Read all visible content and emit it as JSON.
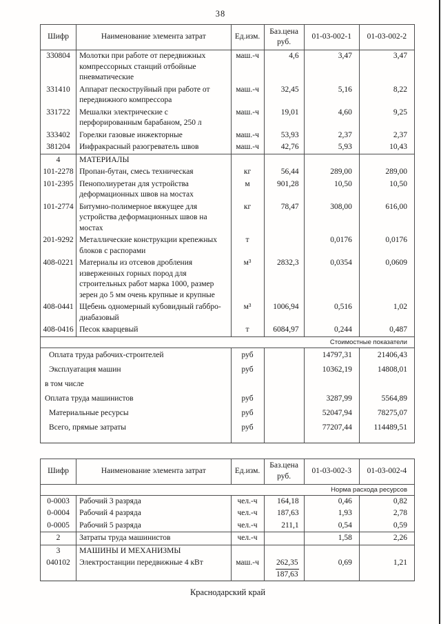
{
  "page": {
    "number": "38",
    "footer": "Краснодарский край"
  },
  "tables": [
    {
      "id": "cost-table-1",
      "headers": [
        "Шифр",
        "Наименование элемента затрат",
        "Ед.изм.",
        "Баз.цена руб.",
        "01-03-002-1",
        "01-03-002-2"
      ],
      "rows": [
        {
          "code": "330804",
          "name": "Молотки при работе от передвижных компрессорных станций отбойные пневматические",
          "unit": "маш.-ч",
          "base": "4,6",
          "v1": "3,47",
          "v2": "3,47"
        },
        {
          "code": "331410",
          "name": "Аппарат пескоструйный при работе от передвижного компрессора",
          "unit": "маш.-ч",
          "base": "32,45",
          "v1": "5,16",
          "v2": "8,22"
        },
        {
          "code": "331722",
          "name": "Мешалки электрические с перфорированным барабаном, 250 л",
          "unit": "маш.-ч",
          "base": "19,01",
          "v1": "4,60",
          "v2": "9,25"
        },
        {
          "code": "333402",
          "name": "Горелки газовые инжекторные",
          "unit": "маш.-ч",
          "base": "53,93",
          "v1": "2,37",
          "v2": "2,37"
        },
        {
          "code": "381204",
          "name": "Инфракрасный разогреватель швов",
          "unit": "маш.-ч",
          "base": "42,76",
          "v1": "5,93",
          "v2": "10,43"
        },
        {
          "section": true,
          "code": "4",
          "name": "МАТЕРИАЛЫ",
          "unit": "",
          "base": "",
          "v1": "",
          "v2": ""
        },
        {
          "code": "101-2278",
          "name": "Пропан-бутан, смесь техническая",
          "unit": "кг",
          "base": "56,44",
          "v1": "289,00",
          "v2": "289,00"
        },
        {
          "code": "101-2395",
          "name": "Пенополиуретан для устройства деформационных швов на мостах",
          "unit": "м",
          "base": "901,28",
          "v1": "10,50",
          "v2": "10,50"
        },
        {
          "code": "101-2774",
          "name": "Битумно-полимерное вяжущее для устройства деформационных швов на мостах",
          "unit": "кг",
          "base": "78,47",
          "v1": "308,00",
          "v2": "616,00"
        },
        {
          "code": "201-9292",
          "name": "Металлические конструкции крепежных блоков с распорами",
          "unit": "т",
          "base": "",
          "v1": "0,0176",
          "v2": "0,0176"
        },
        {
          "code": "408-0221",
          "name": "Материалы из отсевов дробления изверженных горных пород для строительных работ марка 1000, размер зерен до 5 мм очень крупные и крупные",
          "unit": "м³",
          "base": "2832,3",
          "v1": "0,0354",
          "v2": "0,0609"
        },
        {
          "code": "408-0441",
          "name": "Щебень одномерный кубовидный габбро-диабазовый",
          "unit": "м³",
          "base": "1006,94",
          "v1": "0,516",
          "v2": "1,02"
        },
        {
          "code": "408-0416",
          "name": "Песок кварцевый",
          "unit": "т",
          "base": "6084,97",
          "v1": "0,244",
          "v2": "0,487"
        }
      ],
      "band_label": "Стоимостные показатели",
      "band_after": "rows",
      "summary": [
        {
          "name": "Оплата труда рабочих-строителей",
          "unit": "руб",
          "v1": "14797,31",
          "v2": "21406,43",
          "bold": true
        },
        {
          "name": "Эксплуатация машин",
          "unit": "руб",
          "v1": "10362,19",
          "v2": "14808,01",
          "bold": true
        },
        {
          "name": "в том числе",
          "unit": "",
          "v1": "",
          "v2": "",
          "bold": false
        },
        {
          "name": "Оплата труда машинистов",
          "unit": "руб",
          "v1": "3287,99",
          "v2": "5564,89",
          "bold": false
        },
        {
          "name": "Материальные ресурсы",
          "unit": "руб",
          "v1": "52047,94",
          "v2": "78275,07",
          "bold": true
        },
        {
          "name": "Всего, прямые затраты",
          "unit": "руб",
          "v1": "77207,44",
          "v2": "114489,51",
          "bold": true
        }
      ]
    },
    {
      "id": "cost-table-2",
      "headers": [
        "Шифр",
        "Наименование элемента затрат",
        "Ед.изм.",
        "Баз.цена руб.",
        "01-03-002-3",
        "01-03-002-4"
      ],
      "band_label": "Норма расхода ресурсов",
      "band_after": "header",
      "rows": [
        {
          "code": "0-0003",
          "name": "Рабочий 3 разряда",
          "unit": "чел.-ч",
          "base": "164,18",
          "v1": "0,46",
          "v2": "0,82"
        },
        {
          "code": "0-0004",
          "name": "Рабочий 4 разряда",
          "unit": "чел.-ч",
          "base": "187,63",
          "v1": "1,93",
          "v2": "2,78"
        },
        {
          "code": "0-0005",
          "name": "Рабочий 5 разряда",
          "unit": "чел.-ч",
          "base": "211,1",
          "v1": "0,54",
          "v2": "0,59"
        },
        {
          "code": "2",
          "code_bold": true,
          "top_border": true,
          "name": "Затраты труда машинистов",
          "unit": "чел.-ч",
          "base": "",
          "v1": "1,58",
          "v2": "2,26"
        },
        {
          "section": true,
          "top_border": true,
          "code": "3",
          "name": "МАШИНЫ И МЕХАНИЗМЫ",
          "unit": "",
          "base": "",
          "v1": "",
          "v2": ""
        },
        {
          "code": "040102",
          "name": "Электростанции передвижные 4 кВт",
          "unit": "маш.-ч",
          "base_frac": [
            "262,35",
            "187,63"
          ],
          "v1": "0,69",
          "v2": "1,21"
        }
      ]
    }
  ]
}
